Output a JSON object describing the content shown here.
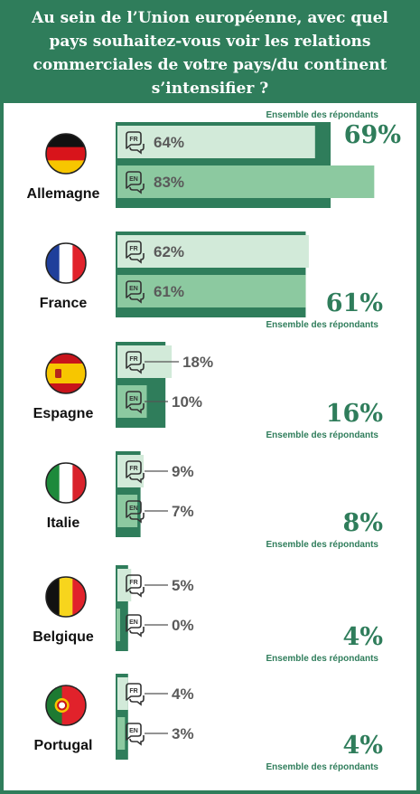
{
  "title": "Au sein de l’Union européenne, avec quel pays souhaitez-vous voir les relations commerciales de votre pays/du continent s’intensifier ?",
  "colors": {
    "accent": "#2f7d5b",
    "fr_bar": "#d2ead9",
    "en_bar": "#8cc9a0",
    "overall_bar": "#2f7d5b"
  },
  "chart_data": {
    "type": "bar",
    "title": "Au sein de l’Union européenne, avec quel pays souhaitez-vous voir les relations commerciales de votre pays/du continent s’intensifier ?",
    "xlim": [
      0,
      100
    ],
    "categories": [
      "Allemagne",
      "France",
      "Espagne",
      "Italie",
      "Belgique",
      "Portugal"
    ],
    "series": [
      {
        "name": "FR",
        "values": [
          64,
          62,
          18,
          9,
          5,
          4
        ]
      },
      {
        "name": "EN",
        "values": [
          83,
          61,
          10,
          7,
          0,
          3
        ]
      },
      {
        "name": "Ensemble des répondants",
        "values": [
          69,
          61,
          16,
          8,
          4,
          4
        ]
      }
    ],
    "value_labels": {
      "FR": [
        "64%",
        "62%",
        "18%",
        "9%",
        "5%",
        "4%"
      ],
      "EN": [
        "83%",
        "61%",
        "10%",
        "7%",
        "0%",
        "3%"
      ],
      "overall": [
        "69%",
        "61%",
        "16%",
        "8%",
        "4%",
        "4%"
      ]
    },
    "badges": {
      "fr": "FR",
      "en": "EN"
    },
    "overall_label": "Ensemble des répondants",
    "flags": [
      "germany-flag",
      "france-flag",
      "spain-flag",
      "italy-flag",
      "belgium-flag",
      "portugal-flag"
    ]
  }
}
